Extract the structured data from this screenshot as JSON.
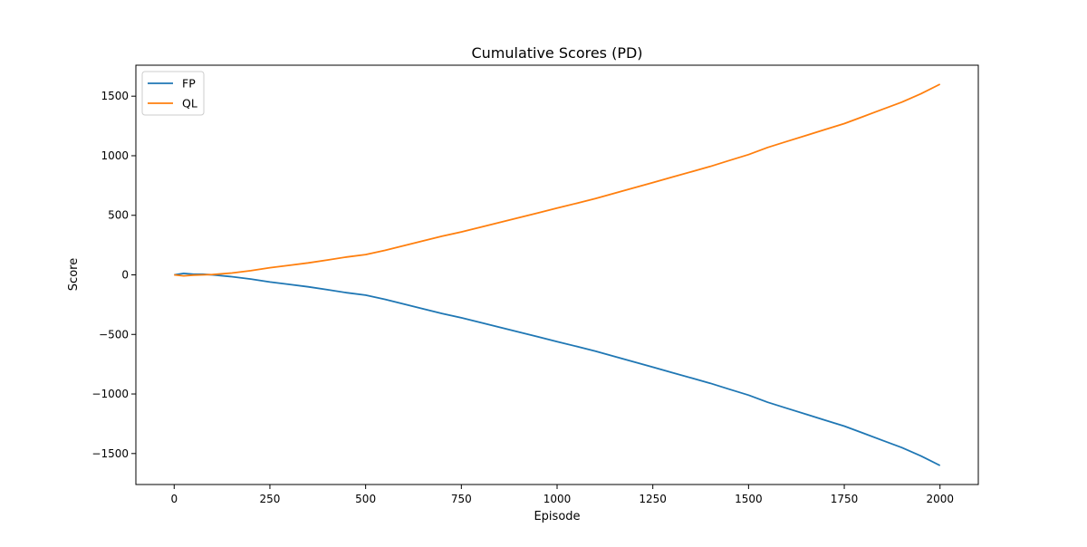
{
  "chart_data": {
    "type": "line",
    "title": "Cumulative Scores (PD)",
    "xlabel": "Episode",
    "ylabel": "Score",
    "xlim": [
      -100,
      2100
    ],
    "ylim": [
      -1760,
      1760
    ],
    "x_ticks": [
      0,
      250,
      500,
      750,
      1000,
      1250,
      1500,
      1750,
      2000
    ],
    "y_ticks": [
      -1500,
      -1000,
      -500,
      0,
      500,
      1000,
      1500
    ],
    "x_tick_labels": [
      "0",
      "250",
      "500",
      "750",
      "1000",
      "1250",
      "1500",
      "1750",
      "2000"
    ],
    "y_tick_labels": [
      "−1500",
      "−1000",
      "−500",
      "0",
      "500",
      "1000",
      "1500"
    ],
    "grid": false,
    "legend_position": "top-left",
    "x": [
      0,
      25,
      50,
      75,
      100,
      150,
      200,
      250,
      300,
      350,
      400,
      450,
      500,
      550,
      600,
      650,
      700,
      750,
      800,
      850,
      900,
      950,
      1000,
      1050,
      1100,
      1150,
      1200,
      1250,
      1300,
      1350,
      1400,
      1450,
      1500,
      1550,
      1600,
      1650,
      1700,
      1750,
      1800,
      1850,
      1900,
      1950,
      2000
    ],
    "series": [
      {
        "name": "FP",
        "color": "#1f77b4",
        "values": [
          0,
          12,
          5,
          5,
          0,
          -15,
          -35,
          -60,
          -80,
          -100,
          -125,
          -150,
          -170,
          -205,
          -245,
          -285,
          -325,
          -360,
          -400,
          -440,
          -480,
          -520,
          -560,
          -600,
          -640,
          -685,
          -730,
          -775,
          -820,
          -865,
          -910,
          -960,
          -1010,
          -1070,
          -1120,
          -1170,
          -1220,
          -1270,
          -1330,
          -1390,
          -1450,
          -1520,
          -1600
        ]
      },
      {
        "name": "QL",
        "color": "#ff7f0e",
        "values": [
          0,
          -8,
          -2,
          0,
          3,
          15,
          35,
          60,
          80,
          100,
          125,
          150,
          170,
          205,
          245,
          285,
          325,
          360,
          400,
          440,
          480,
          520,
          560,
          600,
          640,
          685,
          730,
          775,
          820,
          865,
          910,
          960,
          1010,
          1070,
          1120,
          1170,
          1220,
          1270,
          1330,
          1390,
          1450,
          1520,
          1600
        ]
      }
    ]
  }
}
